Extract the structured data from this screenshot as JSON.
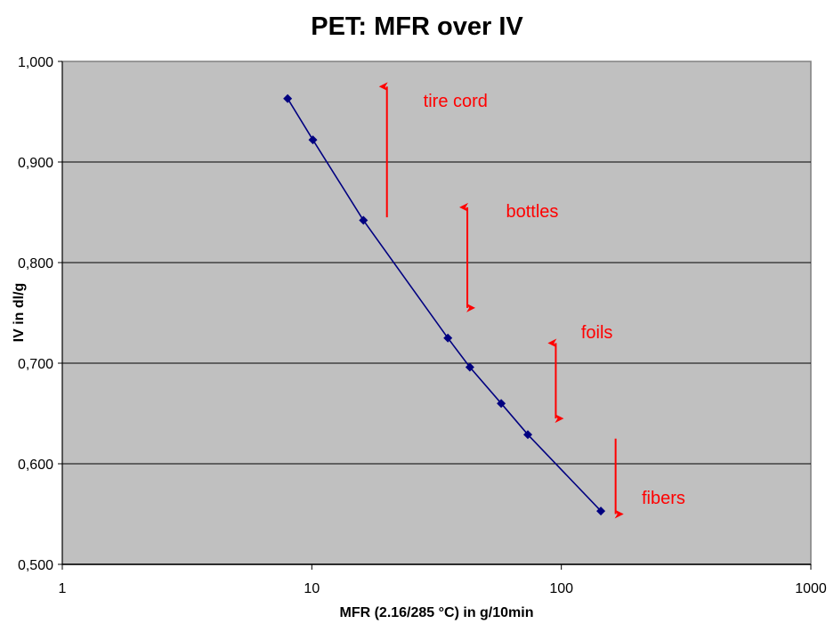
{
  "chart_data": {
    "type": "line",
    "title": "PET: MFR over IV",
    "xlabel": "MFR (2.16/285 °C) in g/10min",
    "ylabel": "IV in dl/g",
    "x_scale": "log",
    "xlim": [
      1,
      1000
    ],
    "ylim": [
      0.5,
      1.0
    ],
    "x_ticks": [
      1,
      10,
      100,
      1000
    ],
    "x_tick_labels": [
      "1",
      "10",
      "100",
      "1000"
    ],
    "y_ticks": [
      0.5,
      0.6,
      0.7,
      0.8,
      0.9,
      1.0
    ],
    "y_tick_labels": [
      "0,500",
      "0,600",
      "0,700",
      "0,800",
      "0,900",
      "1,000"
    ],
    "grid": "horizontal",
    "plot_background": "#c0c0c0",
    "series": [
      {
        "name": "PET",
        "color": "#000080",
        "marker": "diamond",
        "x": [
          8.0,
          10.1,
          16.1,
          35.1,
          43.0,
          57.4,
          73.4,
          144
        ],
        "y": [
          0.963,
          0.922,
          0.842,
          0.725,
          0.696,
          0.66,
          0.629,
          0.553
        ]
      }
    ],
    "annotations": [
      {
        "text": "tire cord",
        "color": "#ff0000",
        "arrow": "up",
        "arrow_x": 20,
        "arrow_y_from": 0.845,
        "arrow_y_to": 0.975,
        "label_x": 28,
        "label_y": 0.955
      },
      {
        "text": "bottles",
        "color": "#ff0000",
        "arrow": "both",
        "arrow_x": 42,
        "arrow_y_from": 0.755,
        "arrow_y_to": 0.855,
        "label_x": 60,
        "label_y": 0.845
      },
      {
        "text": "foils",
        "color": "#ff0000",
        "arrow": "both",
        "arrow_x": 95,
        "arrow_y_from": 0.645,
        "arrow_y_to": 0.72,
        "label_x": 120,
        "label_y": 0.725
      },
      {
        "text": "fibers",
        "color": "#ff0000",
        "arrow": "down",
        "arrow_x": 165,
        "arrow_y_from": 0.625,
        "arrow_y_to": 0.55,
        "label_x": 210,
        "label_y": 0.56
      }
    ]
  }
}
